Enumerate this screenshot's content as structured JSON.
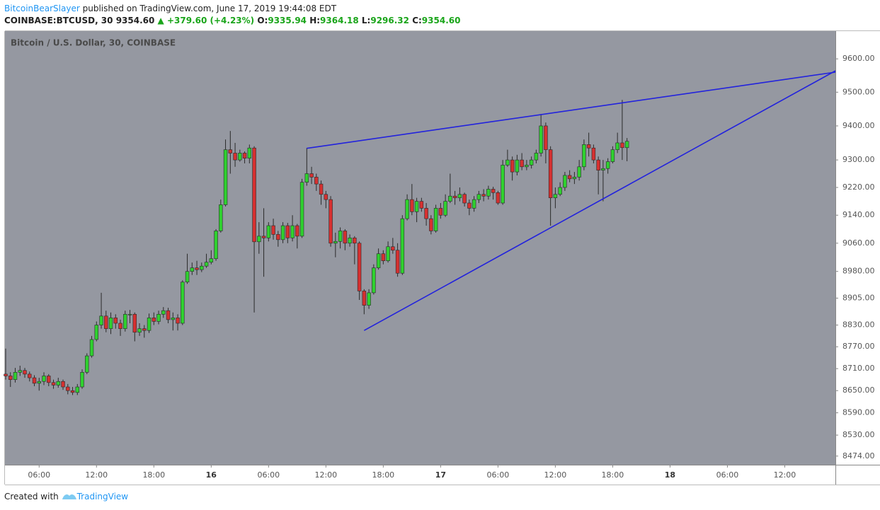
{
  "header": {
    "author": "BitcoinBearSlayer",
    "published": "published on TradingView.com, June 17, 2019 19:44:08 EDT",
    "symbol": "COINBASE:BTCUSD, 30",
    "price": "9354.60",
    "change": "+379.60 (+4.23%)",
    "o_label": "O:",
    "open": "9335.94",
    "h_label": "H:",
    "high": "9364.18",
    "l_label": "L:",
    "low": "9296.32",
    "c_label": "C:",
    "close": "9354.60"
  },
  "footer": {
    "text": "Created with",
    "brand": "TradingView"
  },
  "chart_data": {
    "type": "candlestick",
    "title": "Bitcoin / U.S. Dollar, 30, COINBASE",
    "log_scale": true,
    "up_color": "#2fd12f",
    "down_color": "#d63030",
    "background": "#9598a1",
    "line_color": "#2222dd",
    "ylim": [
      8451,
      9684
    ],
    "yticks": [
      {
        "value": 9600,
        "label": "9600.00"
      },
      {
        "value": 9500,
        "label": "9500.00"
      },
      {
        "value": 9400,
        "label": "9400.00"
      },
      {
        "value": 9300,
        "label": "9300.00"
      },
      {
        "value": 9220,
        "label": "9220.00"
      },
      {
        "value": 9140,
        "label": "9140.00"
      },
      {
        "value": 9060,
        "label": "9060.00"
      },
      {
        "value": 8980,
        "label": "8980.00"
      },
      {
        "value": 8905,
        "label": "8905.00"
      },
      {
        "value": 8830,
        "label": "8830.00"
      },
      {
        "value": 8770,
        "label": "8770.00"
      },
      {
        "value": 8710,
        "label": "8710.00"
      },
      {
        "value": 8650,
        "label": "8650.00"
      },
      {
        "value": 8590,
        "label": "8590.00"
      },
      {
        "value": 8530,
        "label": "8530.00"
      },
      {
        "value": 8474,
        "label": "8474.00"
      }
    ],
    "xlim": [
      -0.15,
      173.6
    ],
    "xticks": [
      {
        "value": 7,
        "label": "06:00"
      },
      {
        "value": 19,
        "label": "12:00"
      },
      {
        "value": 31,
        "label": "18:00"
      },
      {
        "value": 43,
        "label": "16"
      },
      {
        "value": 55,
        "label": "06:00"
      },
      {
        "value": 67,
        "label": "12:00"
      },
      {
        "value": 79,
        "label": "18:00"
      },
      {
        "value": 91,
        "label": "17"
      },
      {
        "value": 103,
        "label": "06:00"
      },
      {
        "value": 115,
        "label": "12:00"
      },
      {
        "value": 127,
        "label": "18:00"
      },
      {
        "value": 139,
        "label": "18"
      },
      {
        "value": 151,
        "label": "06:00"
      },
      {
        "value": 163,
        "label": "12:00"
      }
    ],
    "open": [
      8695,
      8690,
      8680,
      8700,
      8705,
      8695,
      8685,
      8670,
      8675,
      8690,
      8672,
      8665,
      8675,
      8660,
      8650,
      8645,
      8660,
      8700,
      8745,
      8790,
      8830,
      8855,
      8820,
      8850,
      8835,
      8820,
      8860,
      8860,
      8810,
      8820,
      8815,
      8850,
      8840,
      8860,
      8870,
      8845,
      8850,
      8835,
      8950,
      8980,
      8990,
      8985,
      8995,
      9006,
      9016,
      9095,
      9170,
      9330,
      9320,
      9300,
      9320,
      9305,
      9335,
      9064,
      9080,
      9075,
      9110,
      9085,
      9070,
      9110,
      9075,
      9110,
      9080,
      9235,
      9260,
      9250,
      9230,
      9200,
      9185,
      9060,
      9065,
      9095,
      9060,
      9075,
      9060,
      8925,
      8885,
      8920,
      8990,
      9030,
      9010,
      9050,
      9040,
      8975,
      9130,
      9185,
      9150,
      9180,
      9160,
      9130,
      9095,
      9160,
      9140,
      9180,
      9195,
      9190,
      9200,
      9175,
      9160,
      9185,
      9200,
      9195,
      9215,
      9205,
      9175,
      9285,
      9300,
      9265,
      9300,
      9280,
      9285,
      9300,
      9320,
      9400,
      9330,
      9190,
      9200,
      9220,
      9255,
      9245,
      9250,
      9280,
      9345,
      9335,
      9300,
      9270,
      9275,
      9295,
      9330,
      9350,
      9335.94
    ],
    "high": [
      8765,
      8700,
      8712,
      8718,
      8712,
      8702,
      8692,
      8685,
      8700,
      8695,
      8680,
      8685,
      8680,
      8668,
      8660,
      8668,
      8708,
      8752,
      8800,
      8840,
      8920,
      8870,
      8865,
      8860,
      8845,
      8870,
      8872,
      8865,
      8835,
      8830,
      8862,
      8865,
      8870,
      8880,
      8878,
      8865,
      8860,
      8955,
      9030,
      9005,
      9010,
      9005,
      9030,
      9040,
      9100,
      9185,
      9360,
      9385,
      9350,
      9330,
      9325,
      9345,
      9340,
      9120,
      9160,
      9120,
      9130,
      9095,
      9120,
      9118,
      9140,
      9115,
      9245,
      9335,
      9280,
      9260,
      9240,
      9210,
      9195,
      9090,
      9105,
      9100,
      9085,
      9080,
      9065,
      8930,
      8930,
      9000,
      9045,
      9040,
      9065,
      9075,
      9060,
      9140,
      9200,
      9230,
      9190,
      9190,
      9175,
      9140,
      9170,
      9175,
      9200,
      9260,
      9210,
      9220,
      9205,
      9185,
      9195,
      9210,
      9215,
      9225,
      9222,
      9210,
      9300,
      9330,
      9310,
      9315,
      9320,
      9300,
      9310,
      9330,
      9435,
      9410,
      9340,
      9220,
      9235,
      9265,
      9270,
      9265,
      9300,
      9360,
      9380,
      9345,
      9310,
      9300,
      9305,
      9340,
      9380,
      9477,
      9364.18
    ],
    "low": [
      8680,
      8660,
      8672,
      8690,
      8685,
      8675,
      8662,
      8650,
      8665,
      8662,
      8655,
      8658,
      8652,
      8640,
      8638,
      8638,
      8655,
      8695,
      8740,
      8785,
      8820,
      8810,
      8805,
      8820,
      8800,
      8812,
      8835,
      8785,
      8800,
      8795,
      8808,
      8830,
      8832,
      8850,
      8835,
      8815,
      8815,
      8830,
      8945,
      8970,
      8970,
      8978,
      8990,
      9000,
      9010,
      9090,
      9165,
      9260,
      9280,
      9295,
      9290,
      9290,
      8865,
      9030,
      8965,
      9065,
      9070,
      9050,
      9060,
      9060,
      9065,
      9045,
      9075,
      9225,
      9230,
      9210,
      9170,
      9160,
      9050,
      9020,
      9045,
      9040,
      9050,
      9000,
      8900,
      8860,
      8875,
      8915,
      8985,
      9000,
      9005,
      9030,
      8965,
      8970,
      9125,
      9140,
      9120,
      9150,
      9110,
      9085,
      9090,
      9130,
      9135,
      9175,
      9170,
      9180,
      9165,
      9140,
      9150,
      9175,
      9180,
      9185,
      9185,
      9170,
      9170,
      9280,
      9240,
      9255,
      9270,
      9270,
      9275,
      9290,
      9310,
      9290,
      9110,
      9160,
      9195,
      9210,
      9235,
      9230,
      9240,
      9270,
      9310,
      9290,
      9200,
      9180,
      9260,
      9290,
      9320,
      9300,
      9296.32
    ],
    "close": [
      8690,
      8680,
      8700,
      8705,
      8695,
      8685,
      8670,
      8675,
      8690,
      8672,
      8665,
      8675,
      8660,
      8650,
      8645,
      8660,
      8700,
      8745,
      8790,
      8830,
      8855,
      8820,
      8850,
      8835,
      8820,
      8860,
      8860,
      8810,
      8820,
      8815,
      8850,
      8840,
      8860,
      8870,
      8845,
      8850,
      8835,
      8950,
      8980,
      8990,
      8985,
      8995,
      9006,
      9016,
      9095,
      9170,
      9330,
      9320,
      9300,
      9320,
      9305,
      9335,
      9064,
      9080,
      9075,
      9110,
      9085,
      9070,
      9110,
      9075,
      9110,
      9080,
      9235,
      9260,
      9250,
      9230,
      9200,
      9185,
      9060,
      9065,
      9095,
      9060,
      9075,
      9060,
      8925,
      8885,
      8920,
      8990,
      9030,
      9010,
      9050,
      9040,
      8975,
      9130,
      9185,
      9150,
      9180,
      9160,
      9130,
      9095,
      9160,
      9140,
      9180,
      9195,
      9190,
      9200,
      9175,
      9160,
      9185,
      9200,
      9195,
      9215,
      9205,
      9175,
      9285,
      9300,
      9265,
      9300,
      9280,
      9285,
      9300,
      9320,
      9400,
      9330,
      9190,
      9200,
      9220,
      9255,
      9245,
      9250,
      9280,
      9345,
      9335,
      9300,
      9270,
      9275,
      9295,
      9330,
      9350,
      9335.94,
      9354.6
    ],
    "trendlines": [
      {
        "from": [
          63,
          9334
        ],
        "to": [
          173.6,
          9560
        ]
      },
      {
        "from": [
          75,
          8815
        ],
        "to": [
          173.6,
          9564
        ]
      }
    ]
  }
}
